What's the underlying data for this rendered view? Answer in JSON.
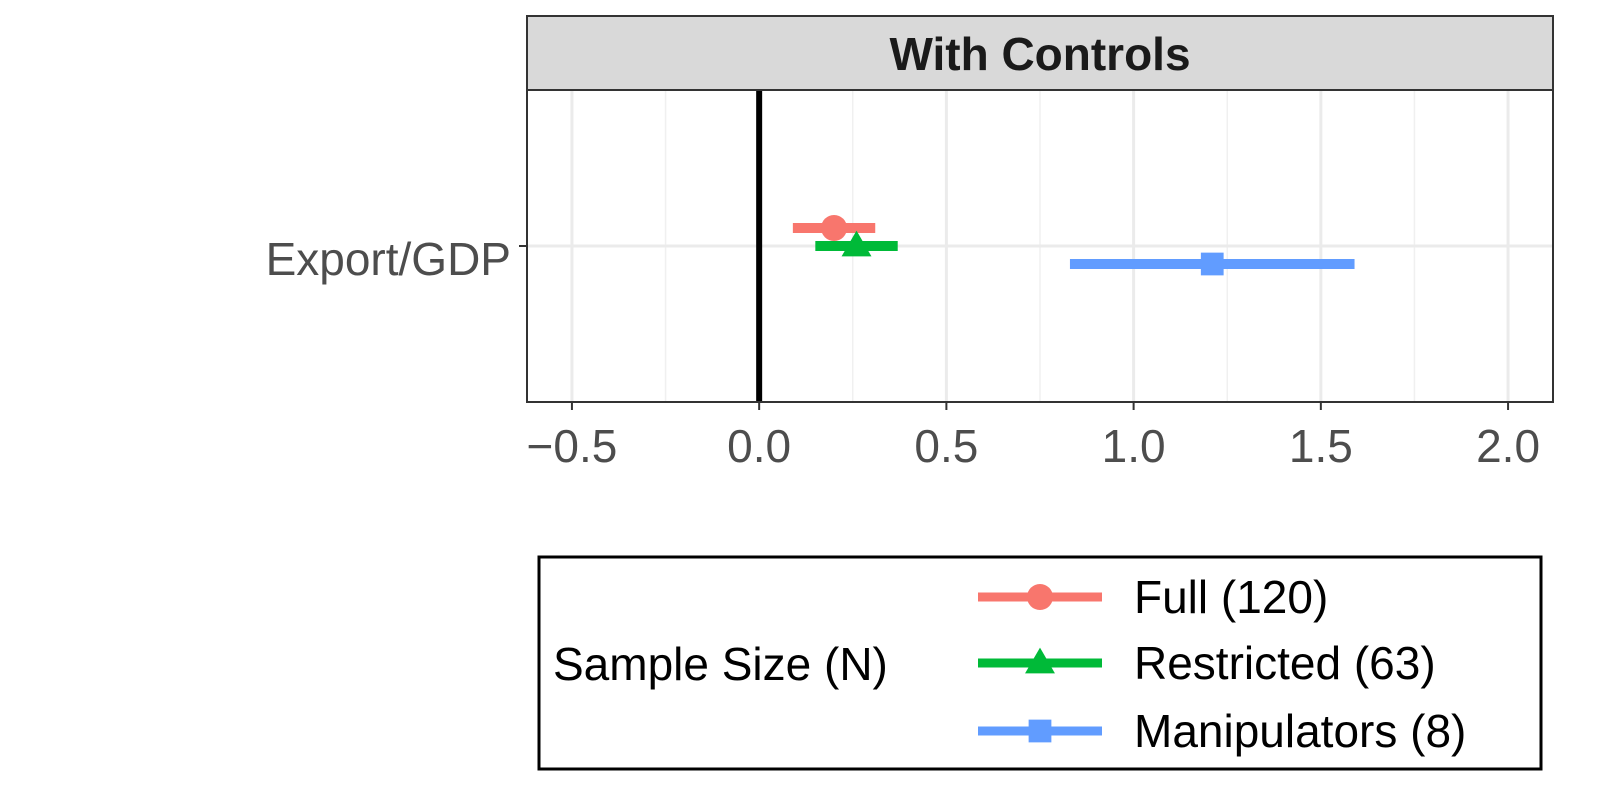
{
  "chart_data": {
    "type": "scatter",
    "facet_title": "With Controls",
    "categories": [
      "Export/GDP"
    ],
    "xlim": [
      -0.62,
      2.12
    ],
    "x_ticks": [
      -0.5,
      0.0,
      0.5,
      1.0,
      1.5,
      2.0
    ],
    "x_tick_labels": [
      "−0.5",
      "0.0",
      "0.5",
      "1.0",
      "1.5",
      "2.0"
    ],
    "reference_line_x": 0,
    "grid": true,
    "legend_position": "bottom",
    "legend_title": "Sample Size (N)",
    "series": [
      {
        "name": "Full (120)",
        "color": "#F8766D",
        "shape": "circle",
        "estimate": 0.2,
        "ci_low": 0.09,
        "ci_high": 0.31
      },
      {
        "name": "Restricted (63)",
        "color": "#00BA38",
        "shape": "triangle",
        "estimate": 0.26,
        "ci_low": 0.15,
        "ci_high": 0.37
      },
      {
        "name": "Manipulators (8)",
        "color": "#619CFF",
        "shape": "square",
        "estimate": 1.21,
        "ci_low": 0.83,
        "ci_high": 1.59
      }
    ]
  }
}
